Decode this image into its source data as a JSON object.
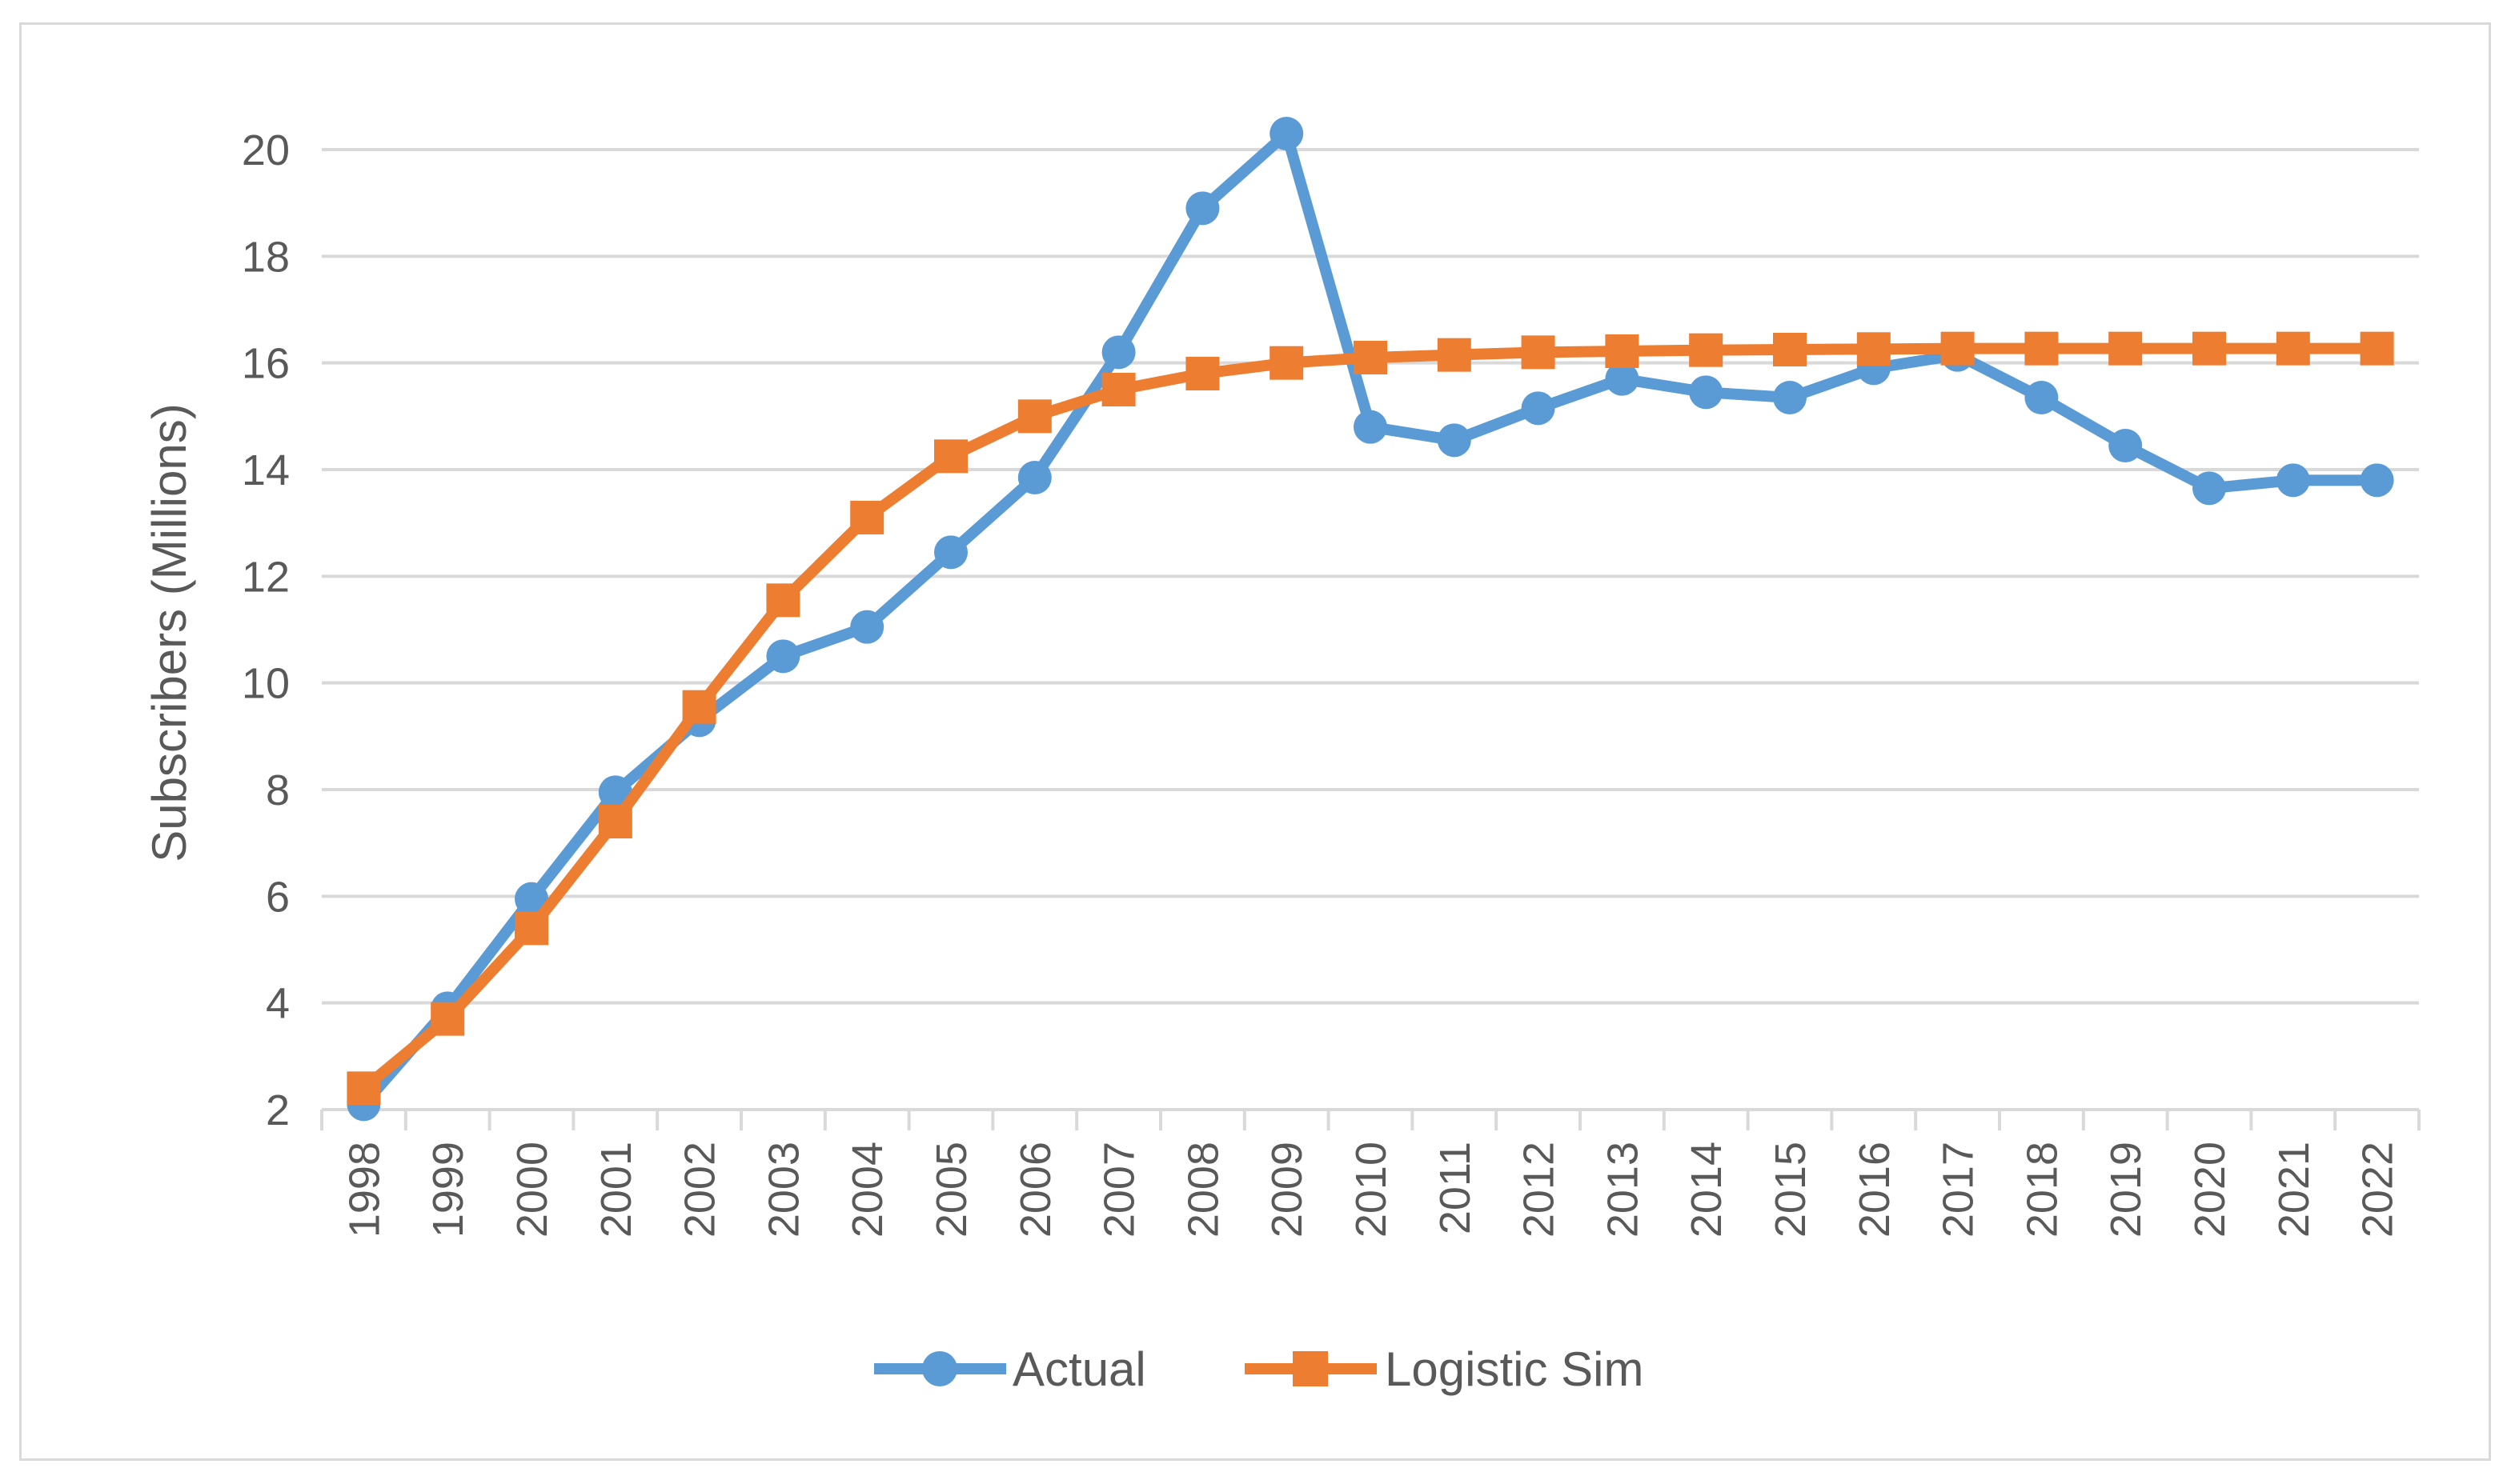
{
  "chart_data": {
    "type": "line",
    "title": "",
    "xlabel": "",
    "ylabel": "Subscribers (Millions)",
    "ylim": [
      2,
      20
    ],
    "yticks": [
      "2",
      "4",
      "6",
      "8",
      "10",
      "12",
      "14",
      "16",
      "18",
      "20"
    ],
    "grid": "horizontal",
    "legend_position": "bottom",
    "categories": [
      "1998",
      "1999",
      "2000",
      "2001",
      "2002",
      "2003",
      "2004",
      "2005",
      "2006",
      "2007",
      "2008",
      "2009",
      "2010",
      "2011",
      "2012",
      "2013",
      "2014",
      "2015",
      "2016",
      "2017",
      "2018",
      "2019",
      "2020",
      "2021",
      "2022"
    ],
    "series": [
      {
        "name": "Actual",
        "color": "#5B9BD5",
        "marker": "circle",
        "values": [
          2.1,
          3.9,
          5.95,
          7.95,
          9.3,
          10.5,
          11.05,
          12.45,
          13.85,
          16.2,
          18.9,
          20.3,
          14.8,
          14.55,
          15.15,
          15.7,
          15.45,
          15.35,
          15.9,
          16.15,
          15.35,
          14.45,
          13.65,
          13.8,
          13.8
        ]
      },
      {
        "name": "Logistic Sim",
        "color": "#ED7D31",
        "marker": "square",
        "values": [
          2.4,
          3.7,
          5.4,
          7.4,
          9.55,
          11.55,
          13.1,
          14.25,
          15.0,
          15.5,
          15.8,
          16.0,
          16.1,
          16.15,
          16.2,
          16.22,
          16.24,
          16.25,
          16.26,
          16.27,
          16.27,
          16.27,
          16.27,
          16.27,
          16.27
        ]
      }
    ]
  }
}
